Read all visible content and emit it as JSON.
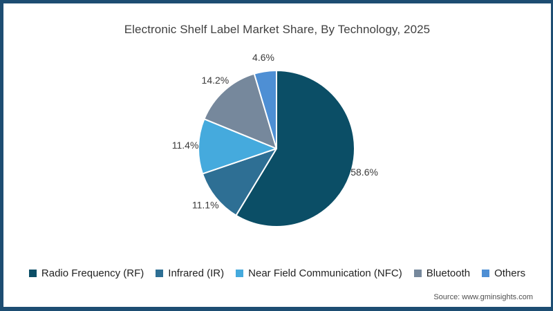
{
  "title": "Electronic Shelf Label Market Share, By Technology, 2025",
  "source": "Source: www.gminsights.com",
  "colors": {
    "frame": "#1d4d72",
    "background": "#ffffff",
    "title_text": "#404040",
    "value_label_text": "#3a3a3a",
    "legend_text": "#222222",
    "source_text": "#4f4f4f",
    "slice_separator": "#ffffff"
  },
  "chart_data": {
    "type": "pie",
    "title": "Electronic Shelf Label Market Share, By Technology, 2025",
    "start_angle_deg": 0,
    "direction": "clockwise",
    "legend_position": "bottom",
    "value_labels_outside": true,
    "slices": [
      {
        "label": "Radio Frequency (RF)",
        "value": 58.6,
        "display": "58.6%",
        "color": "#0b4e66"
      },
      {
        "label": "Infrared (IR)",
        "value": 11.1,
        "display": "11.1%",
        "color": "#2e6f94"
      },
      {
        "label": "Near Field Communication (NFC)",
        "value": 11.4,
        "display": "11.4%",
        "color": "#45aadd"
      },
      {
        "label": "Bluetooth",
        "value": 14.2,
        "display": "14.2%",
        "color": "#76889c"
      },
      {
        "label": "Others",
        "value": 4.6,
        "display": "4.6%",
        "color": "#4e8fd4"
      }
    ]
  }
}
